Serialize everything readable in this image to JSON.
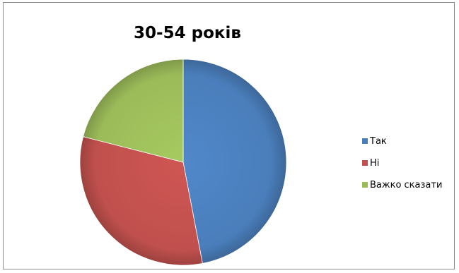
{
  "chart_data": {
    "type": "pie",
    "title": "30-54 років",
    "categories": [
      "Так",
      "Ні",
      "Важко сказати"
    ],
    "values": [
      47,
      32,
      21
    ],
    "colors": [
      "#4A7EBB",
      "#C0504D",
      "#9BBB59"
    ],
    "start_angle": "12 o'clock, clockwise",
    "legend_position": "right"
  }
}
